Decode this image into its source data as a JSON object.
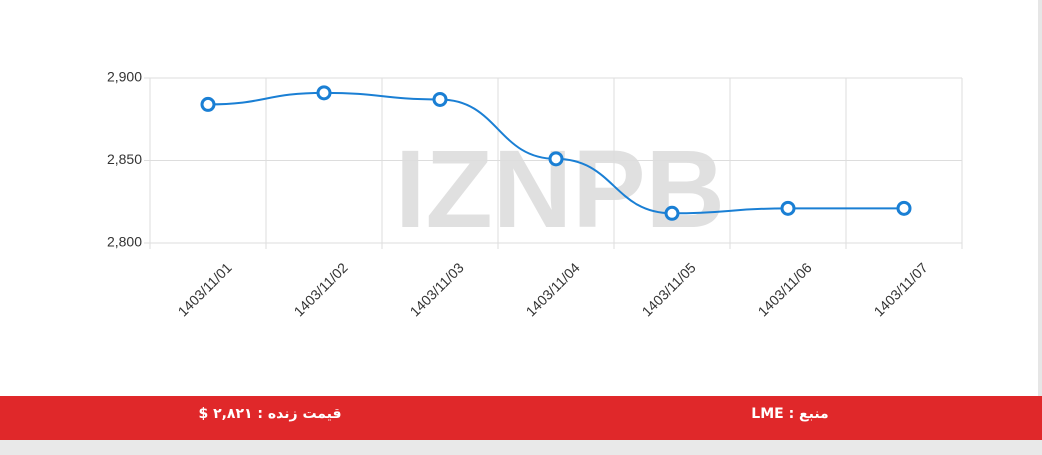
{
  "chart_data": {
    "type": "line",
    "watermark": "IZNPB",
    "categories": [
      "1403/11/01",
      "1403/11/02",
      "1403/11/03",
      "1403/11/04",
      "1403/11/05",
      "1403/11/06",
      "1403/11/07"
    ],
    "series": [
      {
        "color": "#1a7fd4",
        "values": [
          2884,
          2891,
          2887,
          2851,
          2818,
          2821,
          2821
        ]
      }
    ],
    "ylim": [
      2800,
      2900
    ],
    "yticks": [
      {
        "value": 2800,
        "label": "2,800"
      },
      {
        "value": 2850,
        "label": "2,850"
      },
      {
        "value": 2900,
        "label": "2,900"
      }
    ],
    "grid": true
  },
  "footer": {
    "live_price": "قیمت زنده : ۲,۸۲۱ $",
    "source": "منبع : LME"
  }
}
